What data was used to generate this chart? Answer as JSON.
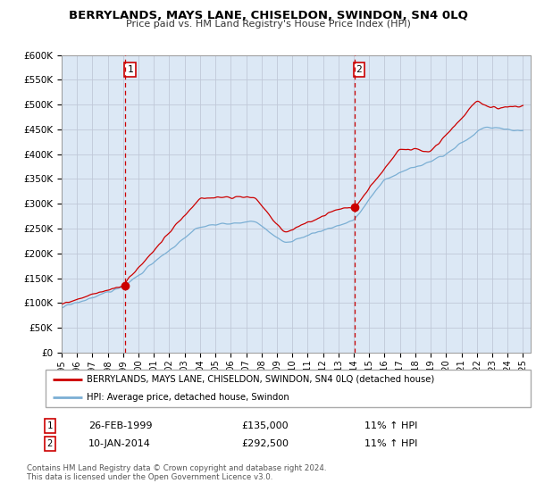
{
  "title": "BERRYLANDS, MAYS LANE, CHISELDON, SWINDON, SN4 0LQ",
  "subtitle": "Price paid vs. HM Land Registry's House Price Index (HPI)",
  "ylim": [
    0,
    600000
  ],
  "xlim_start": 1995.0,
  "xlim_end": 2025.5,
  "red_line_color": "#cc0000",
  "blue_line_color": "#7bafd4",
  "bg_color": "#dce8f5",
  "grid_color": "#c0c8d8",
  "vline_color": "#cc0000",
  "marker_color": "#cc0000",
  "sale1_x": 1999.15,
  "sale1_y": 135000,
  "sale2_x": 2014.04,
  "sale2_y": 292500,
  "legend_label1": "BERRYLANDS, MAYS LANE, CHISELDON, SWINDON, SN4 0LQ (detached house)",
  "legend_label2": "HPI: Average price, detached house, Swindon",
  "note1_num": "1",
  "note1_date": "26-FEB-1999",
  "note1_price": "£135,000",
  "note1_hpi": "11% ↑ HPI",
  "note2_num": "2",
  "note2_date": "10-JAN-2014",
  "note2_price": "£292,500",
  "note2_hpi": "11% ↑ HPI",
  "footer": "Contains HM Land Registry data © Crown copyright and database right 2024.\nThis data is licensed under the Open Government Licence v3.0."
}
